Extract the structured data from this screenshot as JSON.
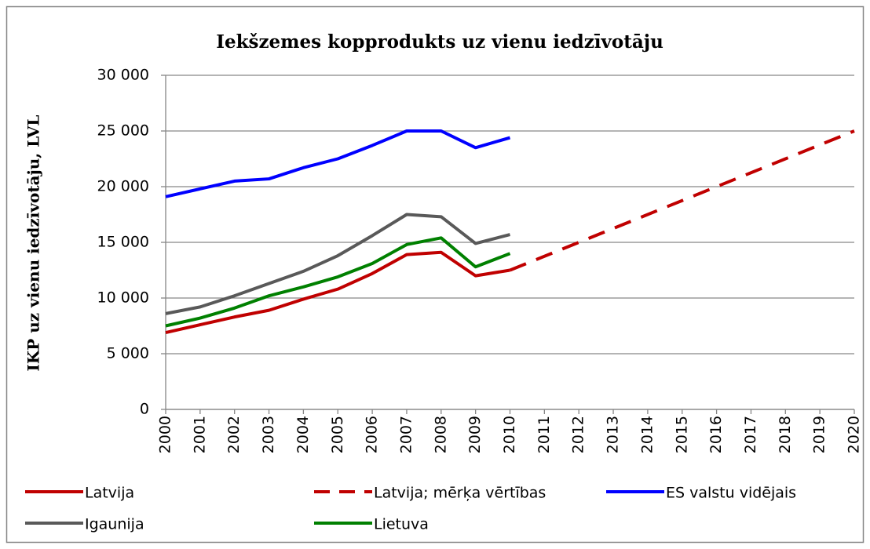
{
  "chart_data": {
    "type": "line",
    "title": "Iekšzemes kopprodukts uz vienu iedzīvotāju",
    "y_label": "IKP uz vienu iedzīvotāju, LVL",
    "categories": [
      "2000",
      "2001",
      "2002",
      "2003",
      "2004",
      "2005",
      "2006",
      "2007",
      "2008",
      "2009",
      "2010",
      "2011",
      "2012",
      "2013",
      "2014",
      "2015",
      "2016",
      "2017",
      "2018",
      "2019",
      "2020"
    ],
    "ylim": [
      0,
      30000
    ],
    "yticks": [
      0,
      {
        "value": 5000,
        "label": "5 000"
      },
      {
        "value": 10000,
        "label": "10 000"
      },
      {
        "value": 15000,
        "label": "15 000"
      },
      {
        "value": 20000,
        "label": "20 000"
      },
      {
        "value": 25000,
        "label": "25 000"
      },
      {
        "value": 30000,
        "label": "30 000"
      }
    ],
    "grid": true,
    "legend": "bottom",
    "series": [
      {
        "name": "Latvija",
        "color": "#c00000",
        "values": [
          6900,
          7600,
          8300,
          8900,
          9900,
          10800,
          12200,
          13900,
          14100,
          12000,
          12500,
          null,
          null,
          null,
          null,
          null,
          null,
          null,
          null,
          null,
          null
        ]
      },
      {
        "name": "Latvija; mērķa vērtības",
        "color": "#c00000",
        "dashed": true,
        "values": [
          null,
          null,
          null,
          null,
          null,
          null,
          null,
          null,
          null,
          null,
          12500,
          13750,
          15000,
          16250,
          17500,
          18750,
          20000,
          21250,
          22500,
          23750,
          25000
        ]
      },
      {
        "name": "ES valstu vidējais",
        "color": "#0000ff",
        "values": [
          19100,
          19800,
          20500,
          20700,
          21700,
          22500,
          23700,
          25000,
          25000,
          23500,
          24400,
          null,
          null,
          null,
          null,
          null,
          null,
          null,
          null,
          null,
          null
        ]
      },
      {
        "name": "Igaunija",
        "color": "#595959",
        "values": [
          8600,
          9200,
          10200,
          11300,
          12400,
          13800,
          15600,
          17500,
          17300,
          14900,
          15700,
          null,
          null,
          null,
          null,
          null,
          null,
          null,
          null,
          null,
          null
        ]
      },
      {
        "name": "Lietuva",
        "color": "#008000",
        "values": [
          7500,
          8200,
          9100,
          10200,
          11000,
          11900,
          13100,
          14800,
          15400,
          12800,
          14000,
          null,
          null,
          null,
          null,
          null,
          null,
          null,
          null,
          null,
          null
        ]
      }
    ]
  }
}
